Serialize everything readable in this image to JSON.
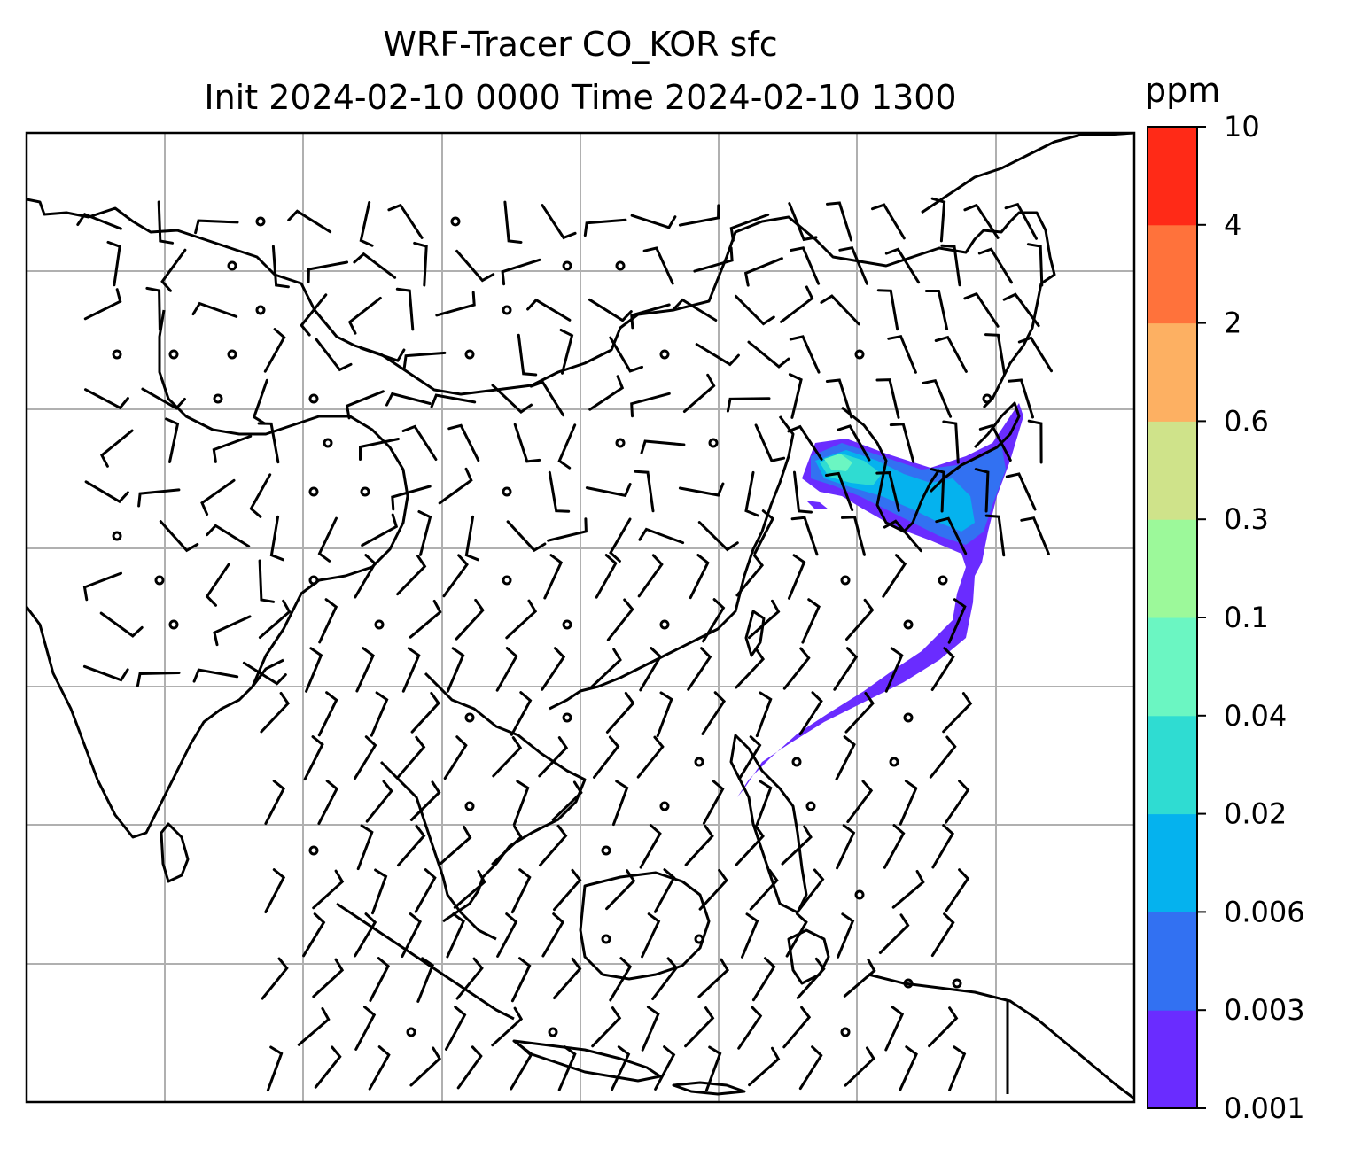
{
  "title": {
    "line1": "WRF-Tracer CO_KOR sfc",
    "line2": "Init 2024-02-10 0000 Time 2024-02-10 1300"
  },
  "colorbar": {
    "units": "ppm",
    "levels": [
      "0.001",
      "0.003",
      "0.006",
      "0.02",
      "0.04",
      "0.1",
      "0.3",
      "0.6",
      "2",
      "4",
      "10"
    ],
    "colors": [
      "#6a2cff",
      "#3271f2",
      "#05b2ee",
      "#2fdcd2",
      "#6bf6c2",
      "#9cf99a",
      "#cfe38a",
      "#fdb062",
      "#ff723b",
      "#ff2a17"
    ]
  },
  "map": {
    "gridlines": true,
    "plume_color": "#6a2cff",
    "plume_core_colors": [
      "#3271f2",
      "#05b2ee",
      "#2fdcd2",
      "#6bf6c2"
    ],
    "wind_barb_color": "#000000",
    "coastline_color": "#000000"
  }
}
